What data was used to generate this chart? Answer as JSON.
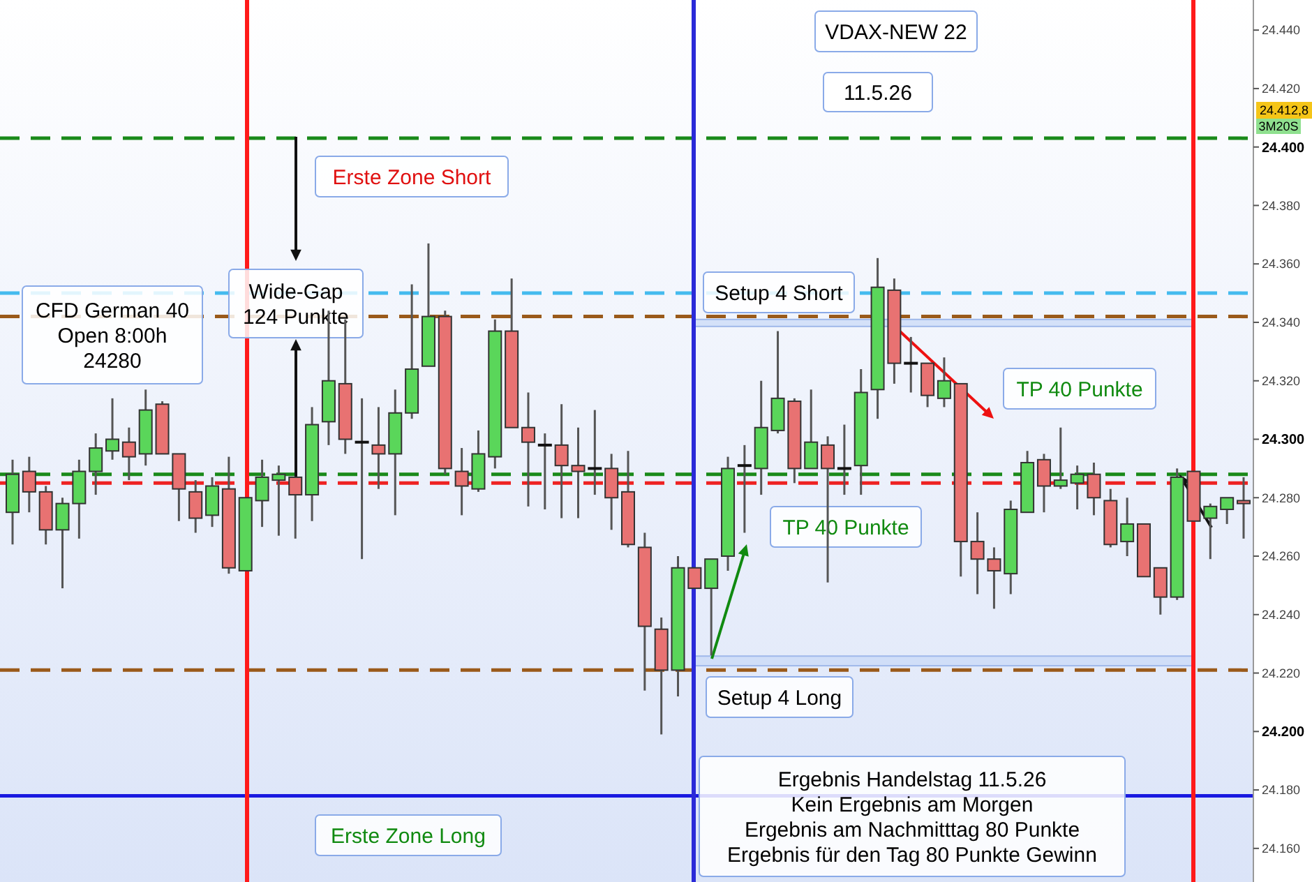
{
  "chart_data": {
    "type": "candlestick",
    "categories": [
      null,
      null,
      null,
      null,
      null,
      null,
      null,
      null,
      null,
      null,
      null,
      null,
      null,
      null,
      null,
      null,
      null,
      null,
      null,
      null,
      null,
      null,
      null,
      null,
      null,
      null,
      null,
      null,
      null,
      null,
      null,
      null,
      null,
      null,
      null,
      null,
      null,
      null,
      null,
      null,
      null,
      null,
      null,
      null,
      null,
      null,
      null,
      null,
      null,
      null,
      null,
      null,
      null,
      null,
      null,
      null,
      null,
      null,
      null,
      null,
      null,
      null,
      null,
      null,
      null,
      null,
      null,
      null,
      null,
      null,
      null,
      null,
      null,
      null,
      null
    ],
    "ohlc": [
      [
        24275,
        24293,
        24264,
        24288
      ],
      [
        24289,
        24294,
        24275,
        24282
      ],
      [
        24282,
        24284,
        24264,
        24269
      ],
      [
        24269,
        24280,
        24249,
        24278
      ],
      [
        24278,
        24293,
        24266,
        24289
      ],
      [
        24289,
        24302,
        24281,
        24297
      ],
      [
        24296,
        24314,
        24293,
        24300
      ],
      [
        24299,
        24304,
        24286,
        24294
      ],
      [
        24295,
        24317,
        24291,
        24310
      ],
      [
        24312,
        24313,
        24295,
        24295
      ],
      [
        24295,
        24295,
        24272,
        24283
      ],
      [
        24282,
        24286,
        24268,
        24273
      ],
      [
        24274,
        24287,
        24270,
        24284
      ],
      [
        24283,
        24294,
        24254,
        24256
      ],
      [
        24255,
        24280,
        24255,
        24280
      ],
      [
        24279,
        24293,
        24270,
        24287
      ],
      [
        24286,
        24291,
        24267,
        24288
      ],
      [
        24287,
        24287,
        24266,
        24281
      ],
      [
        24281,
        24311,
        24272,
        24305
      ],
      [
        24306,
        24344,
        24298,
        24320
      ],
      [
        24319,
        24341,
        24295,
        24300
      ],
      [
        24299,
        24314,
        24259,
        24299
      ],
      [
        24298,
        24311,
        24283,
        24295
      ],
      [
        24295,
        24317,
        24274,
        24309
      ],
      [
        24309,
        24353,
        24307,
        24324
      ],
      [
        24325,
        24367,
        24325,
        24342
      ],
      [
        24342,
        24344,
        24288,
        24290
      ],
      [
        24289,
        24297,
        24274,
        24284
      ],
      [
        24283,
        24303,
        24282,
        24295
      ],
      [
        24294,
        24341,
        24290,
        24337
      ],
      [
        24337,
        24355,
        24304,
        24304
      ],
      [
        24304,
        24316,
        24277,
        24299
      ],
      [
        24298,
        24302,
        24276,
        24298
      ],
      [
        24298,
        24312,
        24273,
        24291
      ],
      [
        24291,
        24304,
        24273,
        24289
      ],
      [
        24290,
        24310,
        24281,
        24290
      ],
      [
        24290,
        24295,
        24269,
        24280
      ],
      [
        24282,
        24296,
        24263,
        24264
      ],
      [
        24263,
        24268,
        24214,
        24236
      ],
      [
        24235,
        24239,
        24199,
        24221
      ],
      [
        24221,
        24260,
        24212,
        24256
      ],
      [
        24256,
        24256,
        24249,
        24249
      ],
      [
        24249,
        24259,
        24226,
        24259
      ],
      [
        24260,
        24294,
        24255,
        24290
      ],
      [
        24291,
        24298,
        24268,
        24291
      ],
      [
        24290,
        24320,
        24281,
        24304
      ],
      [
        24303,
        24337,
        24302,
        24314
      ],
      [
        24313,
        24314,
        24285,
        24290
      ],
      [
        24290,
        24317,
        24290,
        24299
      ],
      [
        24298,
        24301,
        24251,
        24290
      ],
      [
        24290,
        24305,
        24281,
        24290
      ],
      [
        24291,
        24324,
        24281,
        24316
      ],
      [
        24317,
        24362,
        24307,
        24352
      ],
      [
        24351,
        24355,
        24319,
        24326
      ],
      [
        24326,
        24335,
        24316,
        24326
      ],
      [
        24326,
        24326,
        24311,
        24315
      ],
      [
        24314,
        24328,
        24311,
        24320
      ],
      [
        24319,
        24319,
        24253,
        24265
      ],
      [
        24265,
        24275,
        24247,
        24259
      ],
      [
        24259,
        24263,
        24242,
        24255
      ],
      [
        24254,
        24279,
        24247,
        24276
      ],
      [
        24275,
        24296,
        24275,
        24292
      ],
      [
        24293,
        24295,
        24275,
        24284
      ],
      [
        24284,
        24304,
        24283,
        24286
      ],
      [
        24285,
        24291,
        24276,
        24288
      ],
      [
        24288,
        24292,
        24274,
        24280
      ],
      [
        24279,
        24283,
        24263,
        24264
      ],
      [
        24265,
        24280,
        24260,
        24271
      ],
      [
        24271,
        24271,
        24253,
        24253
      ],
      [
        24256,
        24256,
        24240,
        24246
      ],
      [
        24246,
        24290,
        24245,
        24287
      ],
      [
        24289,
        24289,
        24272,
        24272
      ],
      [
        24273,
        24278,
        24259,
        24277
      ],
      [
        24276,
        24280,
        24271,
        24280
      ],
      [
        24279,
        24287,
        24266,
        24278
      ]
    ],
    "ylim": [
      24148.5,
      24450.3
    ],
    "yticks": [
      {
        "value": 24160,
        "label": "24.160"
      },
      {
        "value": 24180,
        "label": "24.180"
      },
      {
        "value": 24200,
        "label": "24.200"
      },
      {
        "value": 24220,
        "label": "24.220"
      },
      {
        "value": 24240,
        "label": "24.240"
      },
      {
        "value": 24260,
        "label": "24.260"
      },
      {
        "value": 24280,
        "label": "24.280"
      },
      {
        "value": 24300,
        "label": "24.300"
      },
      {
        "value": 24320,
        "label": "24.320"
      },
      {
        "value": 24340,
        "label": "24.340"
      },
      {
        "value": 24360,
        "label": "24.360"
      },
      {
        "value": 24380,
        "label": "24.380"
      },
      {
        "value": 24400,
        "label": "24.400"
      },
      {
        "value": 24420,
        "label": "24.420"
      },
      {
        "value": 24440,
        "label": "24.440"
      }
    ],
    "tick_labels": "y",
    "grid": false,
    "ref_lines": [
      {
        "axis": "y",
        "value": 24403,
        "color": "#1a8a1a",
        "line_style": "dashed"
      },
      {
        "axis": "y",
        "value": 24350,
        "color": "#44bbee",
        "line_style": "dashed"
      },
      {
        "axis": "y",
        "value": 24342,
        "color": "#9a5a1a",
        "line_style": "dashed"
      },
      {
        "axis": "y",
        "value": 24288,
        "color": "#1a8a1a",
        "line_style": "dashed"
      },
      {
        "axis": "y",
        "value": 24285,
        "color": "#ee2222",
        "line_style": "dashed"
      },
      {
        "axis": "y",
        "value": 24221,
        "color": "#9a5a1a",
        "line_style": "dashed"
      },
      {
        "axis": "y",
        "value": 24178,
        "color": "#1a1ae0",
        "line_style": "solid"
      }
    ],
    "bands": [
      {
        "axis": "y",
        "from": 24338.6,
        "to": 24341,
        "color": "#c8d8f6"
      },
      {
        "axis": "y",
        "from": 24222.5,
        "to": 24225.8,
        "color": "#c8d8f6"
      }
    ],
    "annotations": [
      "VDAX-NEW 22",
      "11.5.26",
      "Erste Zone Short",
      "Wide-Gap\n124 Punkte",
      "CFD German 40\nOpen 8:00h\n24280",
      "Setup 4 Short",
      "TP 40 Punkte",
      "TP 40 Punkte",
      "Setup 4 Long",
      "Erste Zone Long",
      "Ergebnis Handelstag 11.5.26\nKein Ergebnis am Morgen\nErgebnis am Nachmitttag 80 Punkte\nErgebnis für den Tag 80 Punkte Gewinn",
      "24.412,8",
      "3M20S"
    ]
  }
}
